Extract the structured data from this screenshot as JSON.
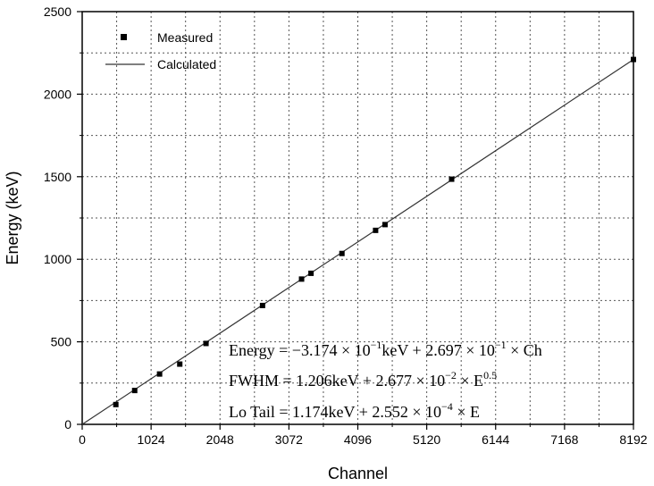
{
  "chart_data": {
    "type": "scatter",
    "xlabel": "Channel",
    "ylabel": "Energy (keV)",
    "xlim": [
      0,
      8192
    ],
    "ylim": [
      0,
      2500
    ],
    "x_ticks": [
      0,
      1024,
      2048,
      3072,
      4096,
      5120,
      6144,
      7168,
      8192
    ],
    "y_ticks": [
      0,
      500,
      1000,
      1500,
      2000,
      2500
    ],
    "grid": "dotted",
    "legend_position": "top-left",
    "series": [
      {
        "name": "Measured",
        "kind": "points",
        "marker": "square",
        "x": [
          500,
          780,
          1150,
          1450,
          1840,
          2680,
          3260,
          3400,
          3860,
          4360,
          4500,
          5490,
          8192
        ],
        "y": [
          120,
          205,
          305,
          365,
          490,
          720,
          880,
          915,
          1035,
          1175,
          1210,
          1485,
          2210
        ]
      },
      {
        "name": "Calculated",
        "kind": "line",
        "x": [
          0,
          8192
        ],
        "y": [
          0,
          2210
        ]
      }
    ],
    "annotations": [
      {
        "prefix": "Energy = −3.174 × 10",
        "sup": "−1",
        "suffix": "keV + 2.697 × 10",
        "sup2": "−1",
        "suffix2": " × Ch"
      },
      {
        "prefix": "FWHM = 1.206keV + 2.677 × 10",
        "sup": "−2",
        "suffix": " × E",
        "sup2": "0.5",
        "suffix2": ""
      },
      {
        "prefix": "Lo Tail = 1.174keV + 2.552 × 10",
        "sup": "−4",
        "suffix": " × E",
        "sup2": "",
        "suffix2": ""
      }
    ]
  }
}
